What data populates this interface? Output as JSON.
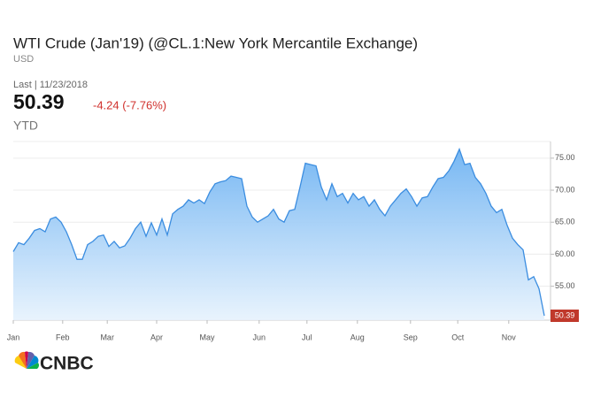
{
  "header": {
    "title": "WTI Crude (Jan'19) (@CL.1:New York Mercantile Exchange)",
    "currency": "USD",
    "last_label": "Last | 11/23/2018",
    "last": "50.39",
    "change": "-4.24 (-7.76%)",
    "period": "YTD"
  },
  "logo": "CNBC",
  "chart_data": {
    "type": "area",
    "color": "#3b8de0",
    "fill": "#8cc4f7",
    "grid": true,
    "values": [
      60.4,
      61.8,
      61.5,
      62.5,
      63.7,
      64.0,
      63.5,
      65.5,
      65.8,
      65.0,
      63.5,
      61.5,
      59.2,
      59.2,
      61.5,
      62.0,
      62.8,
      63.0,
      61.2,
      62.0,
      61.0,
      61.3,
      62.5,
      64.0,
      65.0,
      62.8,
      64.9,
      63.0,
      65.5,
      63.0,
      66.3,
      67.0,
      67.5,
      68.5,
      68.0,
      68.5,
      67.9,
      69.7,
      71.0,
      71.3,
      71.5,
      72.2,
      72.0,
      71.8,
      67.5,
      65.8,
      65.0,
      65.5,
      66.0,
      67.0,
      65.5,
      65.0,
      66.8,
      67.0,
      70.5,
      74.2,
      74.0,
      73.8,
      70.5,
      68.5,
      71.0,
      69.0,
      69.5,
      68.0,
      69.5,
      68.5,
      69.0,
      67.5,
      68.5,
      67.0,
      66.0,
      67.5,
      68.5,
      69.5,
      70.2,
      69.0,
      67.5,
      68.8,
      69.0,
      70.5,
      71.8,
      72.0,
      73.0,
      74.5,
      76.4,
      74.0,
      74.2,
      72.0,
      71.0,
      69.5,
      67.5,
      66.5,
      67.0,
      64.5,
      62.5,
      61.5,
      60.7,
      56.0,
      56.5,
      54.6,
      50.39
    ],
    "value_labels": {
      "100": "50.39"
    },
    "xlim": [
      0,
      100
    ],
    "xticks": [
      {
        "value": 0,
        "label": "Jan"
      },
      {
        "value": 9.3,
        "label": "Feb"
      },
      {
        "value": 17.7,
        "label": "Mar"
      },
      {
        "value": 27,
        "label": "Apr"
      },
      {
        "value": 36.5,
        "label": "May"
      },
      {
        "value": 46.3,
        "label": "Jun"
      },
      {
        "value": 55.3,
        "label": "Jul"
      },
      {
        "value": 64.8,
        "label": "Aug"
      },
      {
        "value": 74.8,
        "label": "Sep"
      },
      {
        "value": 83.7,
        "label": "Oct"
      },
      {
        "value": 93.3,
        "label": "Nov"
      }
    ],
    "ylim": [
      49.7,
      77.6
    ],
    "yticks": [
      {
        "value": 55,
        "label": "55.00"
      },
      {
        "value": 60,
        "label": "60.00"
      },
      {
        "value": 65,
        "label": "65.00"
      },
      {
        "value": 70,
        "label": "70.00"
      },
      {
        "value": 75,
        "label": "75.00"
      }
    ]
  }
}
